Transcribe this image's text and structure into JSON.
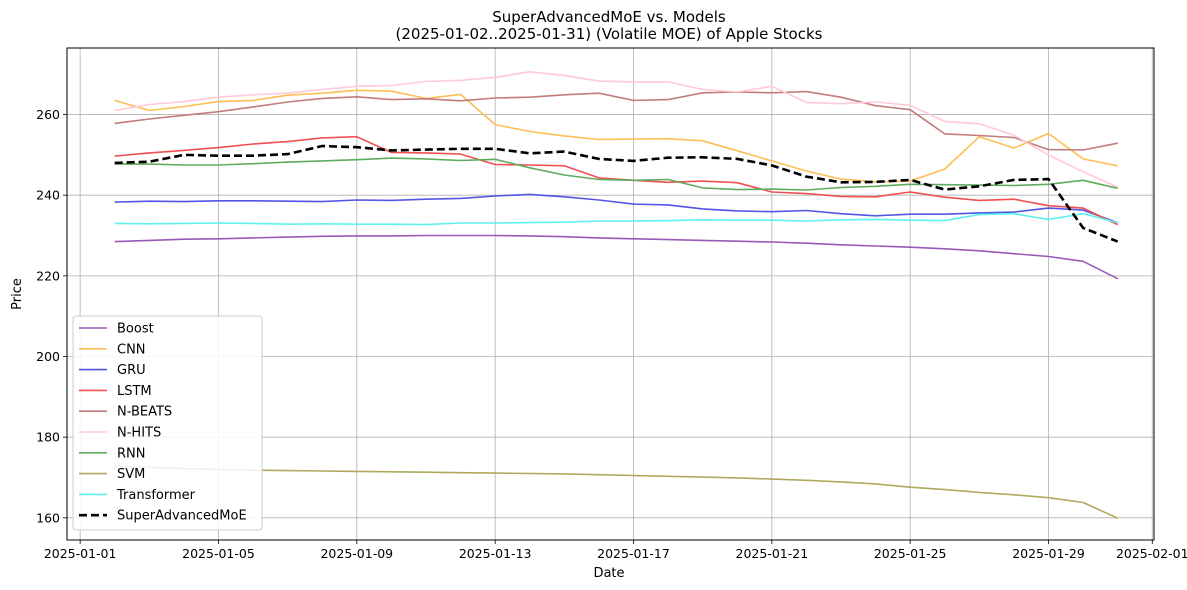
{
  "chart_data": {
    "type": "line",
    "title": "SuperAdvancedMoE vs. Models",
    "subtitle": "(2025-01-02..2025-01-31) (Volatile MOE) of Apple Stocks",
    "xlabel": "Date",
    "ylabel": "Price",
    "grid": true,
    "legend_position": "lower-left",
    "x_ticks": [
      "2025-01-01",
      "2025-01-05",
      "2025-01-09",
      "2025-01-13",
      "2025-01-17",
      "2025-01-21",
      "2025-01-25",
      "2025-01-29",
      "2025-02-01"
    ],
    "x_tick_days": [
      1,
      5,
      9,
      13,
      17,
      21,
      25,
      29,
      32
    ],
    "xlim": [
      0.62,
      32.05
    ],
    "y_ticks": [
      160,
      180,
      200,
      220,
      240,
      260
    ],
    "ylim": [
      154.5,
      276.5
    ],
    "days": [
      2,
      3,
      4,
      5,
      6,
      7,
      8,
      9,
      10,
      11,
      12,
      13,
      14,
      15,
      16,
      17,
      18,
      19,
      20,
      21,
      22,
      23,
      24,
      25,
      26,
      27,
      28,
      29,
      30,
      31
    ],
    "series": [
      {
        "name": "Boost",
        "color": "#9b59b6",
        "width": 1.6,
        "dash": "",
        "values": [
          228.5,
          228.8,
          229.1,
          229.2,
          229.4,
          229.6,
          229.8,
          229.9,
          229.9,
          230.0,
          230.0,
          230.0,
          229.9,
          229.7,
          229.4,
          229.2,
          229.0,
          228.8,
          228.6,
          228.4,
          228.1,
          227.7,
          227.4,
          227.1,
          226.7,
          226.2,
          225.5,
          224.8,
          223.6,
          219.3
        ]
      },
      {
        "name": "CNN",
        "color": "#ffbe55",
        "width": 1.6,
        "dash": "",
        "values": [
          263.5,
          261.0,
          262.0,
          263.2,
          263.5,
          264.8,
          265.3,
          266.0,
          265.8,
          264.0,
          265.0,
          257.5,
          255.8,
          254.7,
          253.8,
          253.9,
          254.0,
          253.5,
          251.0,
          248.5,
          246.0,
          244.0,
          243.3,
          243.5,
          246.5,
          254.5,
          251.7,
          255.3,
          249.0,
          247.3
        ]
      },
      {
        "name": "GRU",
        "color": "#5555e5",
        "width": 1.6,
        "dash": "",
        "values": [
          238.3,
          238.5,
          238.4,
          238.6,
          238.6,
          238.5,
          238.4,
          238.8,
          238.7,
          239.0,
          239.2,
          239.8,
          240.2,
          239.6,
          238.8,
          237.8,
          237.6,
          236.6,
          236.1,
          235.9,
          236.2,
          235.4,
          234.9,
          235.3,
          235.3,
          235.6,
          235.8,
          236.8,
          236.3,
          233.2
        ]
      },
      {
        "name": "LSTM",
        "color": "#f05050",
        "width": 1.6,
        "dash": "",
        "values": [
          249.7,
          250.5,
          251.1,
          251.8,
          252.7,
          253.3,
          254.2,
          254.5,
          250.6,
          250.5,
          250.2,
          247.6,
          247.5,
          247.3,
          244.3,
          243.7,
          243.2,
          243.5,
          243.1,
          240.8,
          240.4,
          239.7,
          239.6,
          240.8,
          239.5,
          238.7,
          239.0,
          237.4,
          236.8,
          232.7
        ]
      },
      {
        "name": "N-BEATS",
        "color": "#c27c7c",
        "width": 1.6,
        "dash": "",
        "values": [
          257.8,
          258.9,
          259.8,
          260.7,
          261.9,
          263.1,
          264.0,
          264.4,
          263.7,
          263.9,
          263.4,
          264.1,
          264.3,
          264.9,
          265.3,
          263.5,
          263.7,
          265.4,
          265.6,
          265.4,
          265.7,
          264.3,
          262.2,
          261.2,
          255.2,
          254.8,
          254.3,
          251.3,
          251.2,
          252.9
        ]
      },
      {
        "name": "N-HITS",
        "color": "#ffc9d8",
        "width": 1.6,
        "dash": "",
        "values": [
          261.0,
          262.5,
          263.2,
          264.3,
          264.9,
          265.3,
          266.2,
          267.0,
          267.2,
          268.2,
          268.5,
          269.2,
          270.6,
          269.7,
          268.3,
          268.1,
          268.1,
          266.2,
          265.6,
          267.0,
          263.0,
          262.7,
          263.1,
          262.3,
          258.3,
          257.7,
          254.9,
          250.0,
          245.8,
          242.0
        ]
      },
      {
        "name": "RNN",
        "color": "#5fac5f",
        "width": 1.6,
        "dash": "",
        "values": [
          247.7,
          247.7,
          247.5,
          247.5,
          247.8,
          248.2,
          248.5,
          248.8,
          249.2,
          249.0,
          248.6,
          248.9,
          246.8,
          245.0,
          243.9,
          243.7,
          243.9,
          241.8,
          241.4,
          241.5,
          241.3,
          241.9,
          242.2,
          242.7,
          242.6,
          242.5,
          242.4,
          242.7,
          243.7,
          241.7
        ]
      },
      {
        "name": "SVM",
        "color": "#afa85e",
        "width": 1.6,
        "dash": "",
        "values": [
          172.8,
          172.5,
          172.2,
          172.0,
          171.8,
          171.7,
          171.6,
          171.5,
          171.4,
          171.3,
          171.2,
          171.1,
          171.0,
          170.9,
          170.7,
          170.5,
          170.3,
          170.1,
          169.9,
          169.6,
          169.3,
          168.9,
          168.4,
          167.6,
          167.0,
          166.3,
          165.7,
          165.0,
          163.8,
          159.9
        ]
      },
      {
        "name": "Transformer",
        "color": "#5ff0f0",
        "width": 1.6,
        "dash": "",
        "values": [
          233.0,
          232.9,
          233.0,
          233.1,
          233.0,
          232.8,
          232.9,
          232.8,
          232.8,
          232.7,
          233.1,
          233.1,
          233.2,
          233.3,
          233.6,
          233.6,
          233.7,
          233.9,
          233.8,
          233.8,
          233.6,
          233.9,
          234.0,
          233.8,
          233.7,
          235.2,
          235.4,
          234.0,
          235.4,
          233.2
        ]
      },
      {
        "name": "SuperAdvancedMoE",
        "color": "#000000",
        "width": 2.6,
        "dash": "8,4",
        "values": [
          248.0,
          248.3,
          250.0,
          249.8,
          249.8,
          250.2,
          252.2,
          251.9,
          251.1,
          251.3,
          251.5,
          251.5,
          250.4,
          250.8,
          249.0,
          248.5,
          249.3,
          249.4,
          249.0,
          247.4,
          244.6,
          243.2,
          243.3,
          243.8,
          241.4,
          242.2,
          243.8,
          244.0,
          231.9,
          228.5
        ]
      }
    ]
  }
}
